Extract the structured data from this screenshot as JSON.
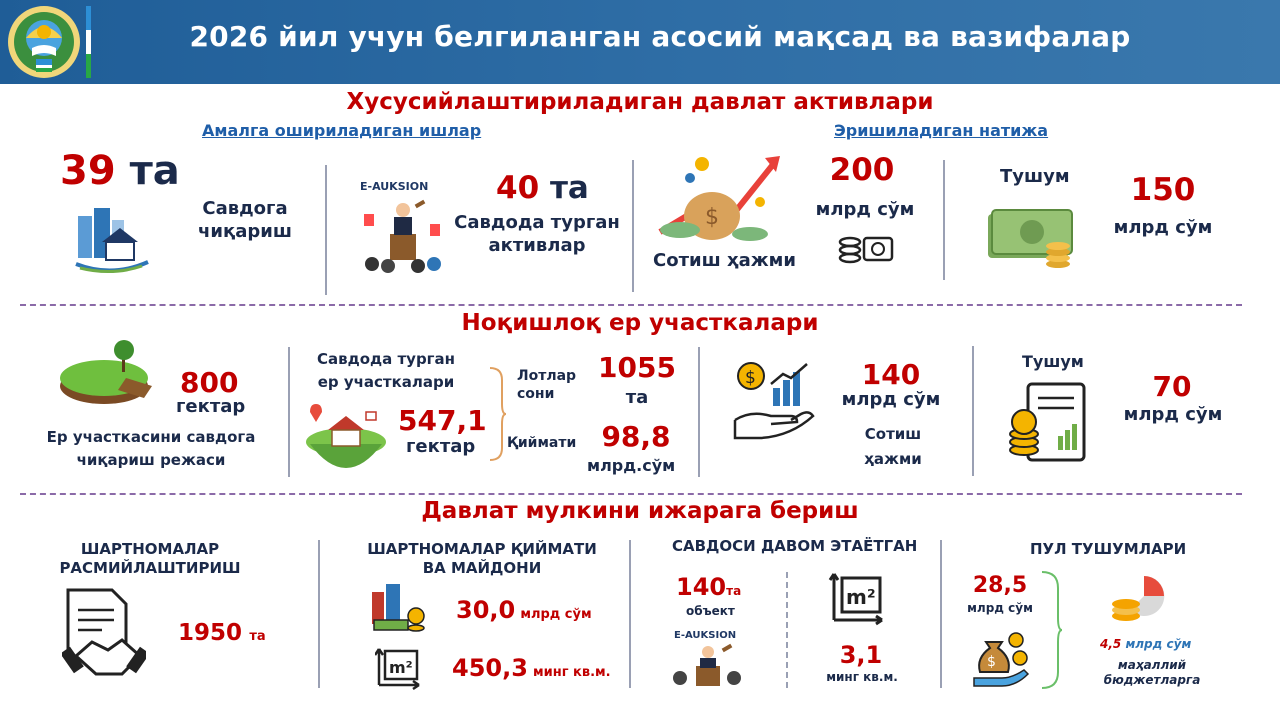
{
  "header": {
    "title": "2026 йил учун белгиланган асосий мақсад ва вазифалар",
    "colors": {
      "bg": "#2a68a1",
      "flag_blue": "#2d8fd6",
      "flag_white": "#ffffff",
      "flag_green": "#28a745"
    }
  },
  "section1": {
    "title": "Хусусийлаштириладиган давлат активлари",
    "link_left": "Амалга ошириладиган ишлар",
    "link_right": "Эришиладиган натижа",
    "item1": {
      "number": "39",
      "unit": "та",
      "label_line1": "Савдога",
      "label_line2": "чиқариш"
    },
    "item2": {
      "auction_logo": "E-AUKSION",
      "number": "40",
      "unit": "та",
      "label_line1": "Савдода турган",
      "label_line2": "активлар"
    },
    "item3": {
      "label": "Сотиш ҳажми",
      "number": "200",
      "unit": "млрд сўм"
    },
    "item4": {
      "label": "Тушум",
      "number": "150",
      "unit": "млрд сўм"
    }
  },
  "section2": {
    "title": "Ноқишлоқ ер участкалари",
    "item1": {
      "number": "800",
      "unit": "гектар",
      "label_line1": "Ер участкасини савдога",
      "label_line2": "чиқариш режаси"
    },
    "item2": {
      "label_line1": "Савдода турган",
      "label_line2": "ер участкалари",
      "number": "547,1",
      "unit": "гектар"
    },
    "item3": {
      "lots_label_line1": "Лотлар",
      "lots_label_line2": "сони",
      "lots_number": "1055",
      "lots_unit": "та",
      "value_label": "Қиймати",
      "value_number": "98,8",
      "value_unit": "млрд.сўм"
    },
    "item4": {
      "number": "140",
      "unit": "млрд сўм",
      "label_line1": "Сотиш",
      "label_line2": "ҳажми"
    },
    "item5": {
      "label": "Тушум",
      "number": "70",
      "unit": "млрд сўм"
    }
  },
  "section3": {
    "title": "Давлат мулкини ижарага бериш",
    "col1": {
      "title_line1": "ШАРТНОМАЛАР",
      "title_line2": "РАСМИЙЛАШТИРИШ",
      "number": "1950",
      "unit": "та"
    },
    "col2": {
      "title_line1": "ШАРТНОМАЛАР ҚИЙМАТИ",
      "title_line2": "ВА МАЙДОНИ",
      "value_number": "30,0",
      "value_unit": "млрд сўм",
      "area_number": "450,3",
      "area_unit": "минг кв.м.",
      "m2_label": "m²"
    },
    "col3": {
      "title": "САВДОСИ ДАВОМ ЭТАЁТГАН",
      "objects_number": "140",
      "objects_unit": "та",
      "objects_label": "объект",
      "auction_logo": "E-AUKSION",
      "area_number": "3,1",
      "area_unit": "минг кв.м.",
      "m2_label": "m²"
    },
    "col4": {
      "title": "ПУЛ ТУШУМЛАРИ",
      "number": "28,5",
      "unit": "млрд сўм",
      "local_amount": "4,5",
      "local_unit": "млрд сўм",
      "local_label_line1": "маҳаллий",
      "local_label_line2": "бюджетларга"
    }
  },
  "icons": [
    "state-emblem-icon",
    "building-house-icon",
    "auction-people-icon",
    "money-bag-growth-icon",
    "coin-stack-icon",
    "cash-money-icon",
    "land-plot-icon",
    "house-island-icon",
    "hand-coin-growth-icon",
    "coin-document-icon",
    "contract-handshake-icon",
    "building-coins-icon",
    "m2-area-icon",
    "auction-hammer-icon",
    "money-bag-hand-icon",
    "coin-pie-icon"
  ]
}
